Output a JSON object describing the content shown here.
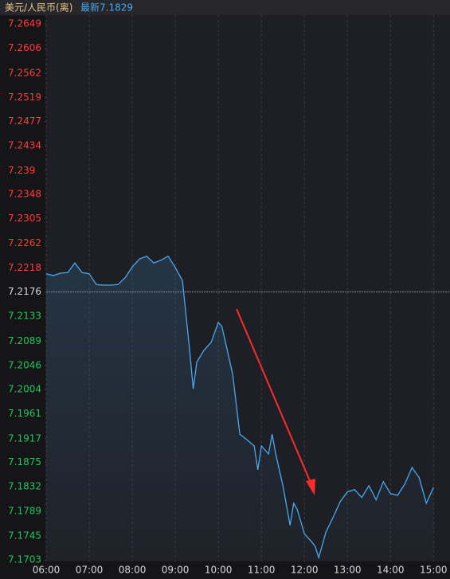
{
  "chart_data": {
    "type": "line",
    "title": "美元/人民币(离)",
    "latest": "最新7.1829",
    "reference": 7.2176,
    "color": "#4aa8f0",
    "up_color": "#ff3b3b",
    "down_color": "#22c55e",
    "ylim": [
      7.1703,
      7.2649
    ],
    "yticks": [
      7.2649,
      7.2606,
      7.2562,
      7.2519,
      7.2477,
      7.2434,
      7.239,
      7.2348,
      7.2305,
      7.2262,
      7.2218,
      7.2176,
      7.2133,
      7.2089,
      7.2046,
      7.2004,
      7.1961,
      7.1917,
      7.1875,
      7.1832,
      7.1789,
      7.1745,
      7.1703
    ],
    "xlim": [
      "06:00",
      "15:23"
    ],
    "xticks": [
      "06:00",
      "07:00",
      "08:00",
      "09:00",
      "10:00",
      "11:00",
      "12:00",
      "13:00",
      "14:00",
      "15:00"
    ],
    "x": [
      "06:00",
      "06:10",
      "06:20",
      "06:30",
      "06:40",
      "06:50",
      "07:00",
      "07:10",
      "07:20",
      "07:30",
      "07:40",
      "07:50",
      "08:00",
      "08:10",
      "08:20",
      "08:30",
      "08:40",
      "08:50",
      "09:00",
      "09:10",
      "09:20",
      "09:25",
      "09:30",
      "09:40",
      "09:50",
      "10:00",
      "10:05",
      "10:10",
      "10:20",
      "10:30",
      "10:40",
      "10:50",
      "10:55",
      "11:00",
      "11:10",
      "11:15",
      "11:20",
      "11:30",
      "11:40",
      "11:45",
      "11:50",
      "12:00",
      "12:10",
      "12:15",
      "12:20",
      "12:30",
      "12:40",
      "12:50",
      "13:00",
      "13:10",
      "13:20",
      "13:30",
      "13:40",
      "13:50",
      "14:00",
      "14:10",
      "14:20",
      "14:30",
      "14:40",
      "14:50",
      "15:00"
    ],
    "values": [
      7.2208,
      7.2205,
      7.2209,
      7.221,
      7.2227,
      7.221,
      7.2208,
      7.2189,
      7.2188,
      7.2188,
      7.2189,
      7.2201,
      7.222,
      7.2234,
      7.2239,
      7.2227,
      7.2232,
      7.2239,
      7.2219,
      7.2196,
      7.2073,
      7.2005,
      7.2052,
      7.2073,
      7.2087,
      7.2122,
      7.2115,
      7.2087,
      7.2031,
      7.1925,
      7.1915,
      7.1904,
      7.1862,
      7.1904,
      7.189,
      7.1925,
      7.189,
      7.1834,
      7.1764,
      7.1803,
      7.1792,
      7.1749,
      7.1735,
      7.1727,
      7.1707,
      7.1752,
      7.1778,
      7.1806,
      7.1823,
      7.1827,
      7.1813,
      7.1834,
      7.1809,
      7.1841,
      7.182,
      7.1817,
      7.1837,
      7.1866,
      7.1848,
      7.1803,
      7.1831
    ],
    "grid": true
  }
}
